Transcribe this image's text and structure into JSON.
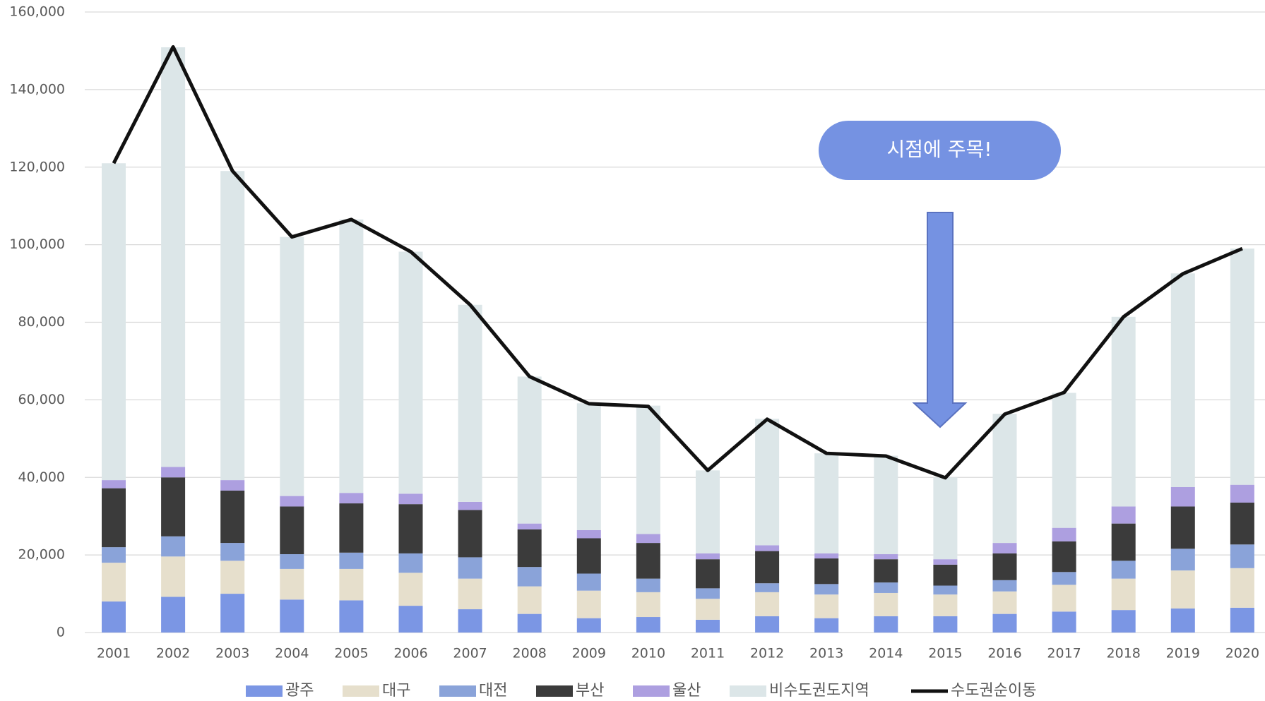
{
  "chart_data": {
    "type": "bar",
    "stacked": true,
    "categories": [
      "2001",
      "2002",
      "2003",
      "2004",
      "2005",
      "2006",
      "2007",
      "2008",
      "2009",
      "2010",
      "2011",
      "2012",
      "2013",
      "2014",
      "2015",
      "2016",
      "2017",
      "2018",
      "2019",
      "2020"
    ],
    "series": [
      {
        "name": "광주",
        "color": "#7b96e4",
        "values": [
          8000,
          9200,
          10000,
          8500,
          8300,
          6900,
          6000,
          4800,
          3700,
          4000,
          3300,
          4200,
          3700,
          4200,
          4200,
          4800,
          5400,
          5800,
          6200,
          6400
        ]
      },
      {
        "name": "대구",
        "color": "#e6dfcc",
        "values": [
          10000,
          10400,
          8500,
          7900,
          8100,
          8500,
          7900,
          7100,
          7100,
          6400,
          5400,
          6200,
          6100,
          6000,
          5600,
          5800,
          6900,
          8100,
          9800,
          10200
        ]
      },
      {
        "name": "대전",
        "color": "#8aa3d9",
        "values": [
          4000,
          5200,
          4600,
          3800,
          4200,
          5000,
          5500,
          5000,
          4400,
          3500,
          2700,
          2300,
          2700,
          2700,
          2300,
          2900,
          3300,
          4600,
          5600,
          6100
        ]
      },
      {
        "name": "부산",
        "color": "#3b3b3b",
        "values": [
          15200,
          15200,
          13500,
          12300,
          12700,
          12700,
          12200,
          9700,
          9100,
          9200,
          7500,
          8300,
          6600,
          6000,
          5400,
          6900,
          7900,
          9600,
          10900,
          10800
        ]
      },
      {
        "name": "울산",
        "color": "#ad9fe0",
        "values": [
          2100,
          2700,
          2700,
          2700,
          2700,
          2700,
          2100,
          1500,
          2100,
          2300,
          1500,
          1500,
          1300,
          1300,
          1400,
          2700,
          3500,
          4400,
          5000,
          4600
        ]
      },
      {
        "name": "비수도권도지역",
        "color": "#dce6e8",
        "values": [
          81700,
          108200,
          79700,
          66800,
          70500,
          62400,
          50800,
          37900,
          32700,
          33100,
          21400,
          32600,
          25800,
          25400,
          21100,
          33300,
          34800,
          48900,
          55100,
          60900
        ]
      },
      {
        "name": "수도권순이동",
        "color": "#111111",
        "type": "line",
        "values": [
          121000,
          151000,
          119000,
          102000,
          106500,
          98200,
          84500,
          66000,
          59000,
          58300,
          41800,
          55000,
          46200,
          45500,
          39900,
          56300,
          61900,
          81400,
          92500,
          99000
        ]
      }
    ],
    "ylim": [
      0,
      160000
    ],
    "yticks": [
      0,
      {
        "value": 20000,
        "label": "20,000"
      },
      {
        "value": 40000,
        "label": "40,000"
      },
      {
        "value": 60000,
        "label": "60,000"
      },
      {
        "value": 80000,
        "label": "80,000"
      },
      {
        "value": 100000,
        "label": "100,000"
      },
      {
        "value": 120000,
        "label": "120,000"
      },
      {
        "value": 140000,
        "label": "140,000"
      },
      {
        "value": 160000,
        "label": "160,000"
      }
    ],
    "grid": true,
    "legend": "bottom",
    "annotations": [
      "시점에 주목!"
    ]
  }
}
